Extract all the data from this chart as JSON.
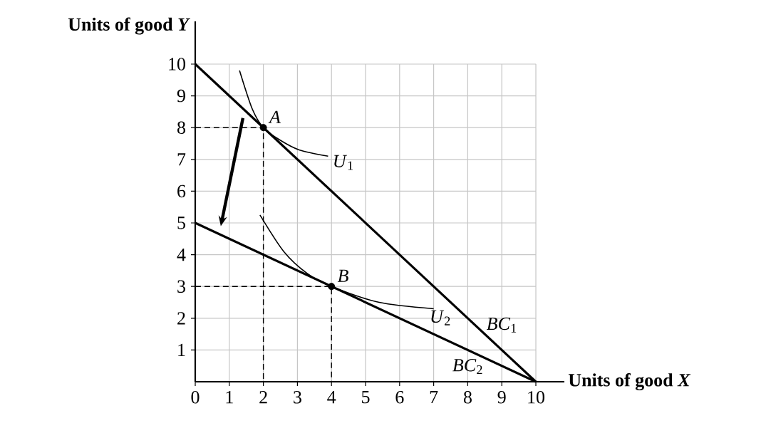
{
  "chart_data": {
    "type": "line",
    "xlabel": "Units of good *X*",
    "ylabel": "Units of good *Y*",
    "xlim": [
      0,
      10
    ],
    "ylim": [
      0,
      10
    ],
    "xticks": [
      {
        "value": 0,
        "label": "0"
      },
      1,
      2,
      3,
      4,
      5,
      6,
      7,
      8,
      9,
      10
    ],
    "yticks": [
      1,
      2,
      3,
      4,
      5,
      6,
      7,
      8,
      9,
      10
    ],
    "grid": true,
    "marker": "none",
    "series": [
      {
        "color": "#000000",
        "x": [
          0,
          10
        ],
        "values": [
          10,
          0
        ]
      },
      {
        "color": "#000000",
        "x": [
          0,
          10
        ],
        "values": [
          5,
          0
        ]
      },
      {
        "color": "#000000",
        "x": [
          1.3,
          1.67,
          2,
          2.5,
          3.05,
          3.9
        ],
        "values": [
          9.8,
          8.6,
          8,
          7.6,
          7.3,
          7.1
        ]
      },
      {
        "color": "#000000",
        "x": [
          1.9,
          2.6,
          3.3,
          4,
          5.4,
          7
        ],
        "values": [
          5.25,
          4.1,
          3.4,
          3,
          2.5,
          2.3
        ]
      },
      {
        "color": "#000000",
        "line_style": "dashed",
        "x": [
          0,
          2,
          2
        ],
        "values": [
          8,
          8,
          0
        ]
      },
      {
        "color": "#000000",
        "line_style": "dashed",
        "x": [
          0,
          4,
          4
        ],
        "values": [
          3,
          3,
          0
        ]
      },
      {
        "type": "scatter",
        "color": "#000000",
        "marker": "circle",
        "x": [
          2,
          4
        ],
        "values": [
          8,
          3
        ]
      }
    ],
    "annotations": [
      {
        "text": "*A*",
        "x": 2,
        "y": 8
      },
      {
        "text": "*B*",
        "x": 4,
        "y": 3
      },
      {
        "text": "*U*$_{1}$",
        "x": 3.9,
        "y": 7.1
      },
      {
        "text": "*U*$_{2}$",
        "x": 7,
        "y": 2.3
      },
      {
        "text": "*BC*$_{1}$",
        "x": 8.5,
        "y": 1.5
      },
      {
        "text": "*BC*$_{2}$",
        "x": 7.5,
        "y": 1
      }
    ]
  }
}
